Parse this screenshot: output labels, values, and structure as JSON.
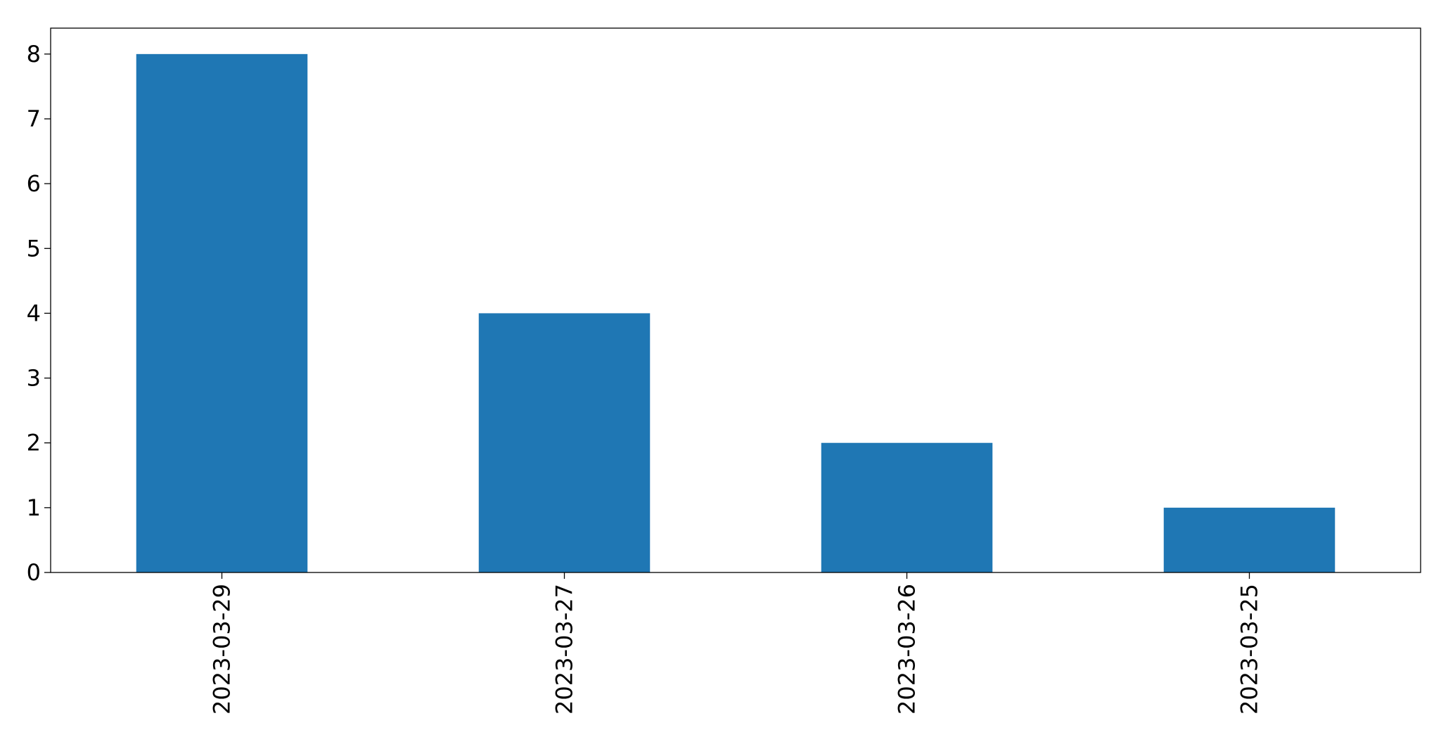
{
  "chart_data": {
    "type": "bar",
    "title": "",
    "xlabel": "",
    "ylabel": "",
    "categories": [
      "2023-03-29",
      "2023-03-27",
      "2023-03-26",
      "2023-03-25"
    ],
    "values": [
      8,
      4,
      2,
      1
    ],
    "ylim": [
      0,
      8.4
    ],
    "yticks": [
      0,
      1,
      2,
      3,
      4,
      5,
      6,
      7,
      8
    ],
    "bar_color": "#1f77b4",
    "grid": false,
    "legend": "none"
  }
}
